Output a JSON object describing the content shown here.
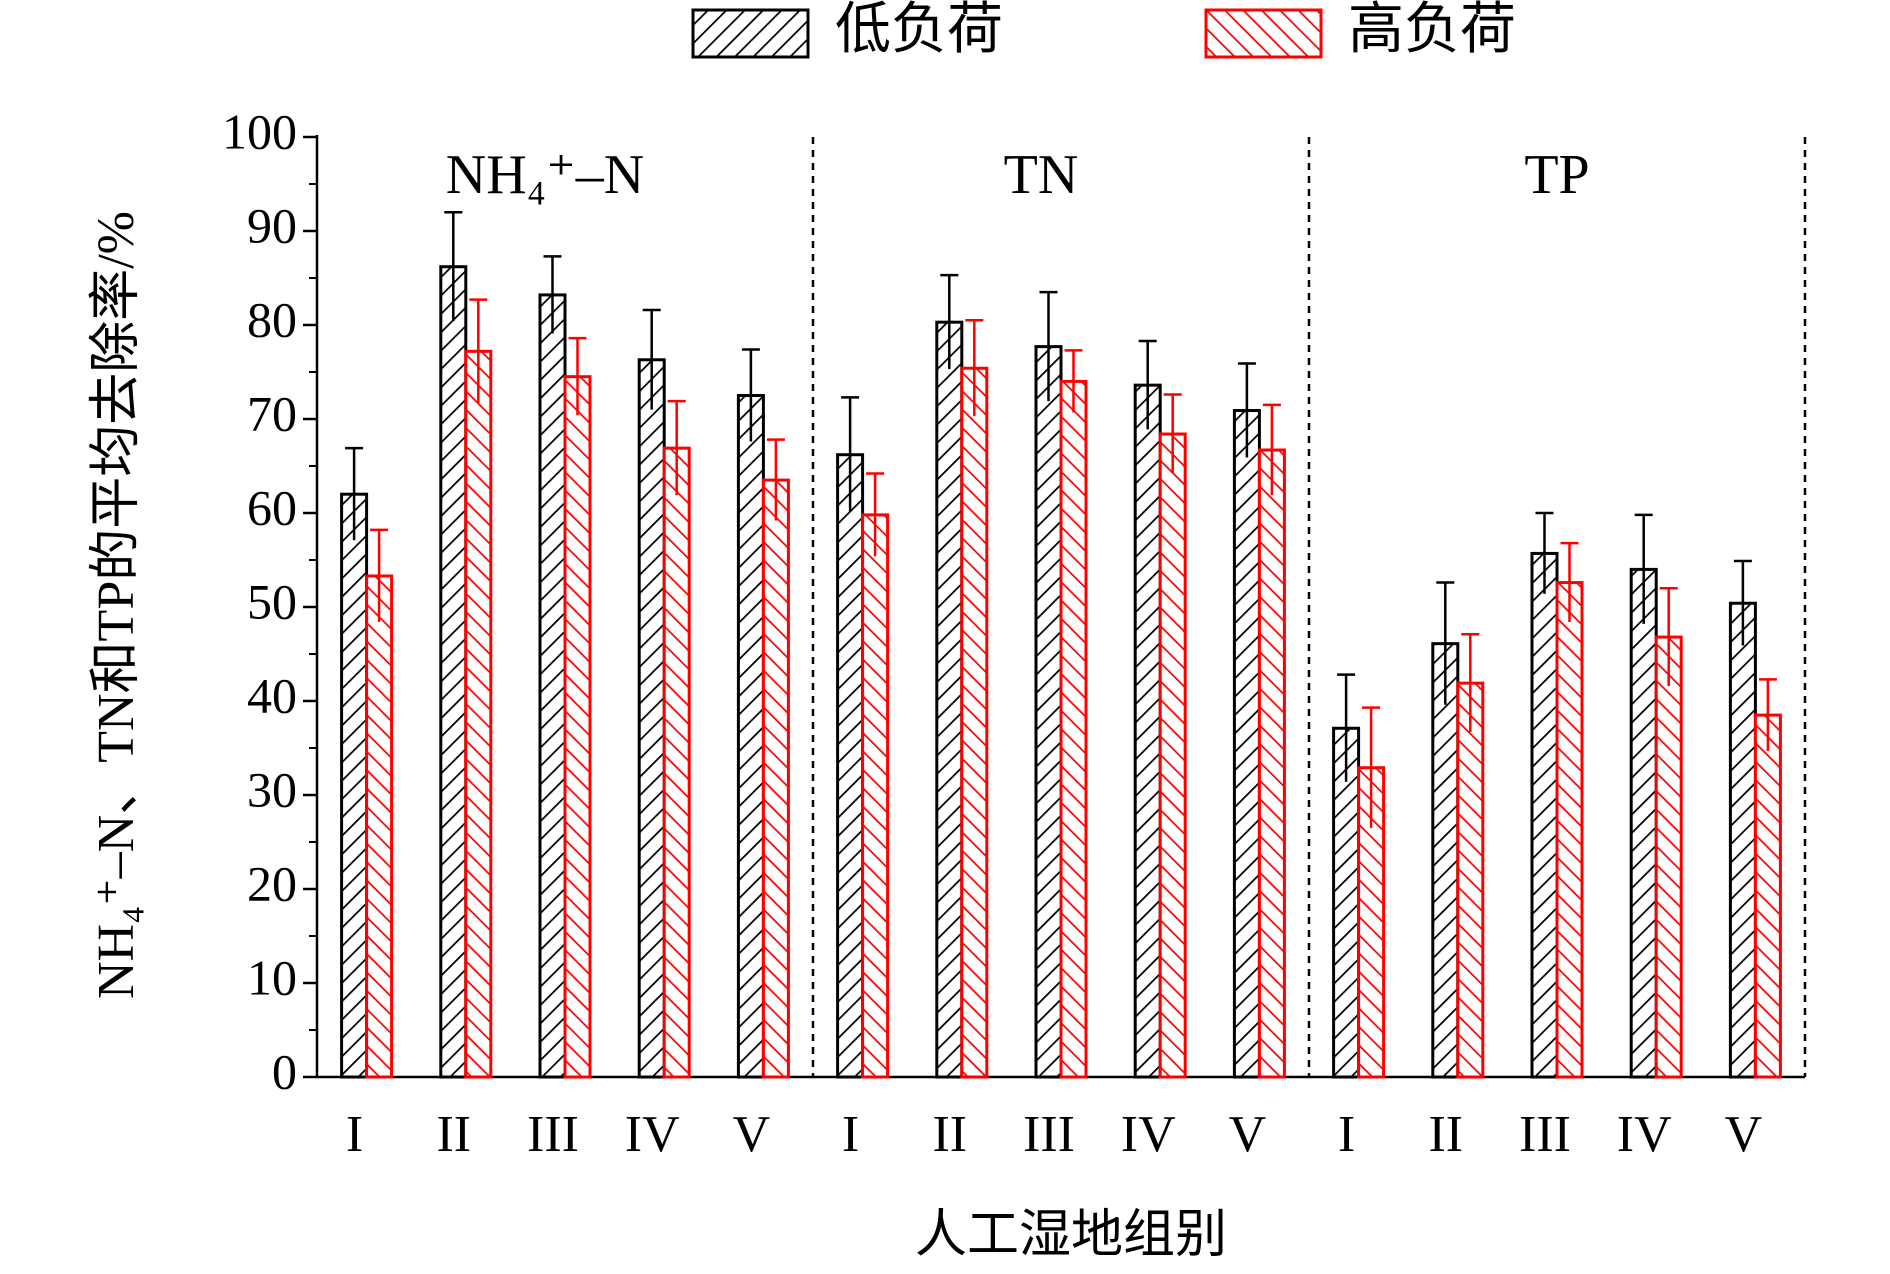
{
  "chart_data": {
    "type": "bar",
    "y_label": "NH₄⁺–N、TN和TP的平均去除率/%",
    "x_label": "人工湿地组别",
    "groups": [
      "NH₄⁺–N",
      "TN",
      "TP"
    ],
    "categories": [
      "I",
      "II",
      "III",
      "IV",
      "V",
      "I",
      "II",
      "III",
      "IV",
      "V",
      "I",
      "II",
      "III",
      "IV",
      "V"
    ],
    "series": [
      {
        "name": "低负荷",
        "color": "#000000",
        "values": [
          62.0,
          86.2,
          83.2,
          76.3,
          72.5,
          66.2,
          80.3,
          77.7,
          73.6,
          70.9,
          37.1,
          46.1,
          55.7,
          54.0,
          50.4
        ],
        "errors": [
          4.9,
          5.8,
          4.1,
          5.3,
          4.9,
          6.1,
          5.0,
          5.8,
          4.7,
          5.0,
          5.7,
          6.5,
          4.3,
          5.8,
          4.5
        ]
      },
      {
        "name": "高负荷",
        "color": "#ff0000",
        "values": [
          53.3,
          77.2,
          74.5,
          66.9,
          63.5,
          59.8,
          75.4,
          74.0,
          68.4,
          66.7,
          32.9,
          41.9,
          52.6,
          46.8,
          38.5
        ],
        "errors": [
          4.9,
          5.5,
          4.1,
          5.0,
          4.3,
          4.4,
          5.1,
          3.3,
          4.2,
          4.8,
          6.4,
          5.2,
          4.2,
          5.2,
          3.8
        ]
      }
    ],
    "ylim": [
      0,
      100
    ],
    "yticks": [
      0,
      10,
      20,
      30,
      40,
      50,
      60,
      70,
      80,
      90,
      100
    ],
    "yminor_ticks": [
      5,
      15,
      25,
      35,
      45,
      55,
      65,
      75,
      85,
      95
    ],
    "legend": "top"
  }
}
